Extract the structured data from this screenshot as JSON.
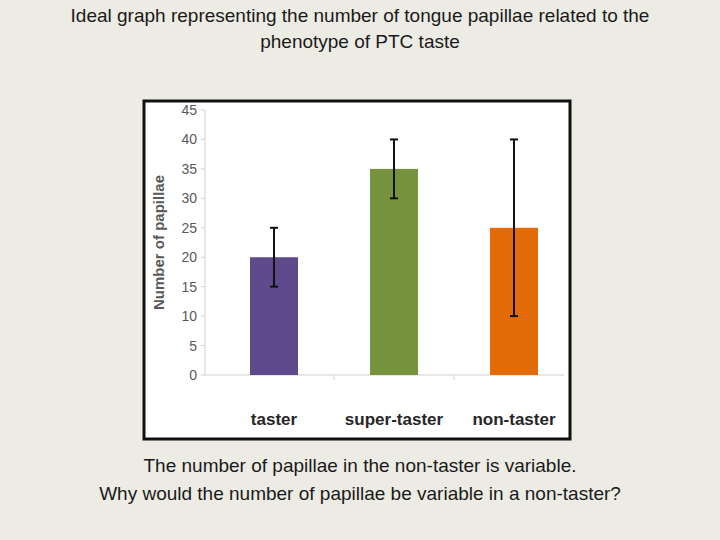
{
  "chart_data": {
    "type": "bar",
    "title": "Ideal graph representing the number of tongue papillae related to the phenotype of PTC taste",
    "y_label": "Number of papillae",
    "categories": [
      "taster",
      "super-taster",
      "non-taster"
    ],
    "values": [
      20,
      35,
      25
    ],
    "errors": [
      5,
      5,
      15
    ],
    "colors": [
      "#5f4a8b",
      "#76923c",
      "#e36c09"
    ],
    "ylim": [
      0,
      45
    ],
    "yticks": [
      0,
      5,
      10,
      15,
      20,
      25,
      30,
      35,
      40,
      45
    ],
    "grid": false,
    "annotations": [
      "The number of papillae in the non-taster is variable.",
      "Why would the number of papillae be variable in a non-taster?"
    ]
  }
}
